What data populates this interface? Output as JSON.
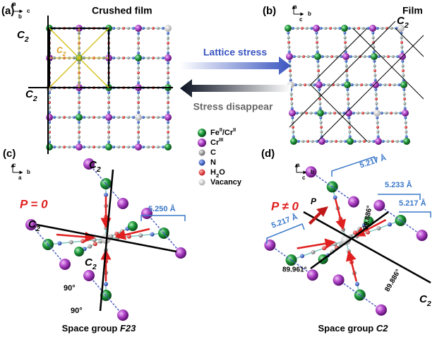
{
  "panels": [
    {
      "label": "(a)",
      "title": "Crushed film",
      "axes": [
        "a",
        "c",
        "b"
      ],
      "c2_labels": [
        [
          {
            "text": "C"
          },
          {
            "sub": "2"
          }
        ],
        [
          {
            "text": "C"
          },
          {
            "sub": "2"
          }
        ],
        [
          {
            "text": "C"
          },
          {
            "sub": "2"
          }
        ]
      ]
    },
    {
      "label": "(b)",
      "title": "Film",
      "axes": [
        "a",
        "b",
        "c"
      ],
      "c2_labels": [
        [
          {
            "text": "C"
          },
          {
            "sub": "2"
          }
        ]
      ]
    },
    {
      "label": "(c)",
      "axes": [
        "c",
        "b",
        "a"
      ],
      "polarization": "P = 0",
      "c2_labels": [
        [
          {
            "text": "C"
          },
          {
            "sub": "2"
          }
        ],
        [
          {
            "text": "C"
          },
          {
            "sub": "2"
          }
        ],
        [
          {
            "text": "C"
          },
          {
            "sub": "2"
          }
        ]
      ],
      "distances": [
        "5.250 Å"
      ],
      "angles": [
        "90°",
        "90°"
      ],
      "caption": [
        {
          "text": "Space group "
        },
        {
          "italic": "F23"
        }
      ]
    },
    {
      "label": "(d)",
      "axes": [
        "a",
        "b",
        "c"
      ],
      "polarization": "P ≠ 0",
      "vector": "P",
      "c2_labels": [
        [
          {
            "text": "C"
          },
          {
            "sub": "2"
          }
        ]
      ],
      "distances": [
        "5.217 Å",
        "5.233 Å",
        "5.217 Å",
        "5.217 Å"
      ],
      "angles": [
        "89.886°",
        "89.961°",
        "89.886°"
      ],
      "caption": [
        {
          "text": "Space group "
        },
        {
          "italic": "C2"
        }
      ]
    }
  ],
  "arrows": {
    "forward": "Lattice stress",
    "backward": "Stress disappear"
  },
  "legend": [
    [
      {
        "text": "Fe"
      },
      {
        "sup": "II"
      },
      {
        "text": "/Cr"
      },
      {
        "sup": "II"
      }
    ],
    [
      {
        "text": "Cr"
      },
      {
        "sup": "III"
      }
    ],
    [
      {
        "text": "C"
      }
    ],
    [
      {
        "text": "N"
      }
    ],
    [
      {
        "text": "H"
      },
      {
        "sub": "2"
      },
      {
        "text": "O"
      }
    ],
    [
      {
        "text": "Vacancy"
      }
    ]
  ]
}
